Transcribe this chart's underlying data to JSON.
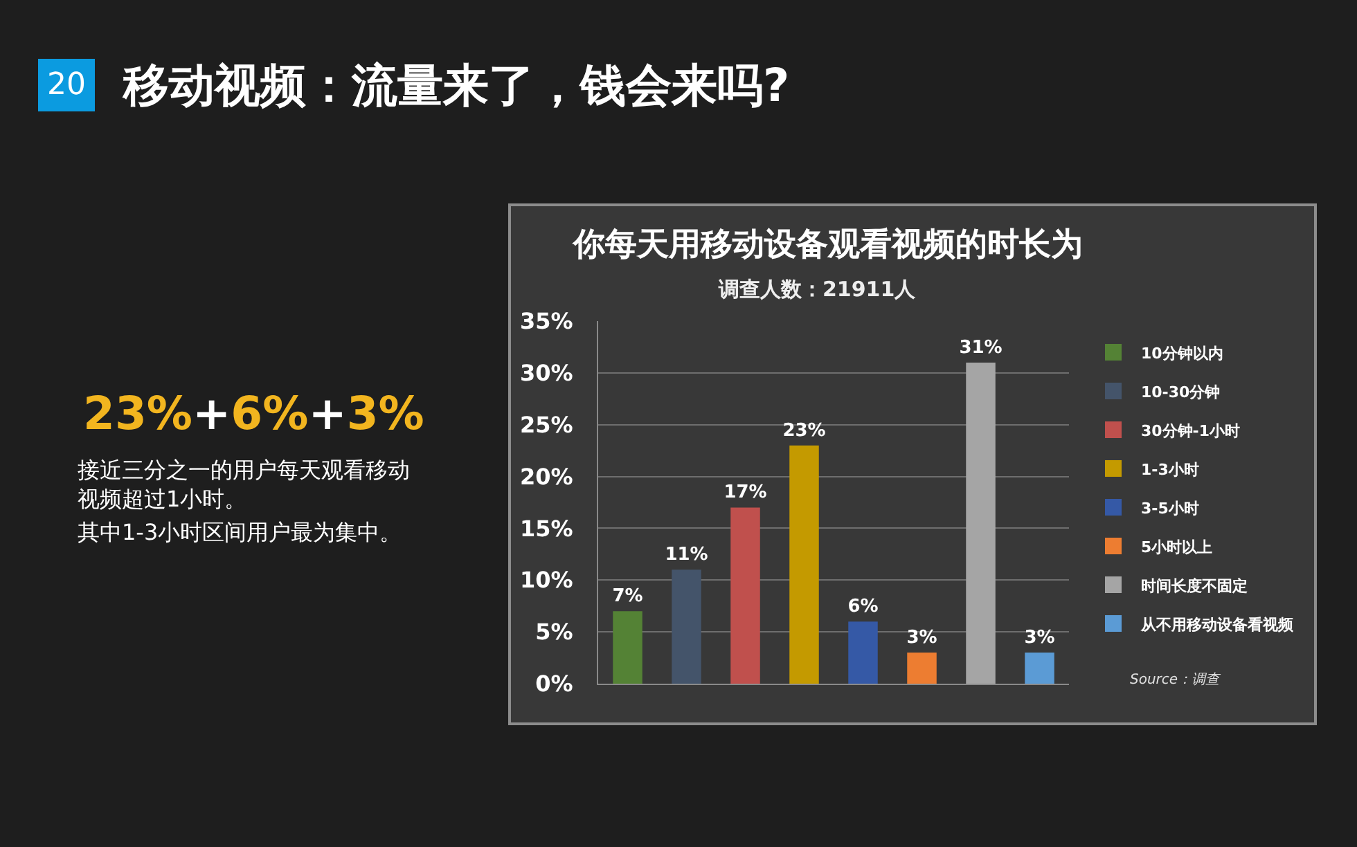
{
  "chart_data": {
    "type": "bar",
    "title": "你每天用移动设备观看视频的时长为",
    "subtitle": "调查人数：21911人",
    "categories": [
      null
    ],
    "series": [
      {
        "name": "10分钟以内",
        "color": "#548235",
        "values": [
          7
        ],
        "value_labels": [
          "7%"
        ]
      },
      {
        "name": "10-30分钟",
        "color": "#44546a",
        "values": [
          11
        ],
        "value_labels": [
          "11%"
        ]
      },
      {
        "name": "30分钟-1小时",
        "color": "#c0504d",
        "values": [
          17
        ],
        "value_labels": [
          "17%"
        ]
      },
      {
        "name": "1-3小时",
        "color": "#c49a00",
        "values": [
          23
        ],
        "value_labels": [
          "23%"
        ]
      },
      {
        "name": "3-5小时",
        "color": "#3559a6",
        "values": [
          6
        ],
        "value_labels": [
          "6%"
        ]
      },
      {
        "name": "5小时以上",
        "color": "#ed7d31",
        "values": [
          3
        ],
        "value_labels": [
          "3%"
        ]
      },
      {
        "name": "时间长度不固定",
        "color": "#a5a5a5",
        "values": [
          31
        ],
        "value_labels": [
          "31%"
        ]
      },
      {
        "name": "从不用移动设备看视频",
        "color": "#5b9bd5",
        "values": [
          3
        ],
        "value_labels": [
          "3%"
        ]
      }
    ],
    "ylim": [
      0,
      35
    ],
    "yticks": [
      {
        "value": 0,
        "label": "0%"
      },
      {
        "value": 5,
        "label": "5%"
      },
      {
        "value": 10,
        "label": "10%"
      },
      {
        "value": 15,
        "label": "15%"
      },
      {
        "value": 20,
        "label": "20%"
      },
      {
        "value": 25,
        "label": "25%"
      },
      {
        "value": 30,
        "label": "30%"
      },
      {
        "value": 35,
        "label": "35%"
      }
    ],
    "grid": "y",
    "legend": "right",
    "tick_labels": "y",
    "annotations": [
      "20",
      "移动视频：流量来了，钱会来吗?",
      "23%+6%+3%",
      "接近三分之一的用户每天观看移动视频超过1小时。",
      "其中1-3小时区间用户最为集中。",
      "Source：调查"
    ]
  }
}
